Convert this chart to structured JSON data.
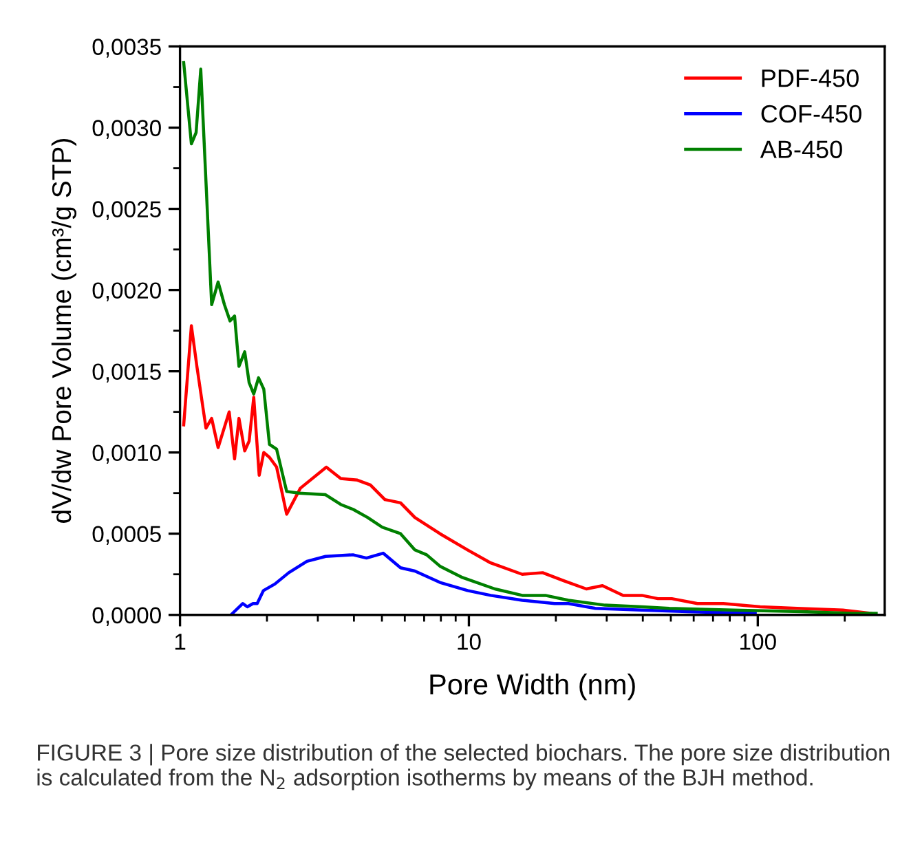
{
  "chart_data": {
    "type": "line",
    "xlabel": "Pore Width (nm)",
    "ylabel": "dV/dw Pore Volume (cm³/g STP)",
    "log": "x",
    "xlim": [
      1,
      275
    ],
    "xticks": [
      1,
      10,
      100
    ],
    "ylim": [
      0,
      0.0035
    ],
    "yticks": [
      {
        "value": 0,
        "label": "0,0000"
      },
      {
        "value": 0.0005,
        "label": "0,0005"
      },
      {
        "value": 0.001,
        "label": "0,0010"
      },
      {
        "value": 0.0015,
        "label": "0,0015"
      },
      {
        "value": 0.002,
        "label": "0,0020"
      },
      {
        "value": 0.0025,
        "label": "0,0025"
      },
      {
        "value": 0.003,
        "label": "0,0030"
      },
      {
        "value": 0.0035,
        "label": "0,0035"
      }
    ],
    "grid": false,
    "legend": "top right",
    "marker": "none",
    "line_style": "solid",
    "series": [
      {
        "name": "PDF-450",
        "color": "#ff0000",
        "x": [
          1.03,
          1.095,
          1.144,
          1.23,
          1.287,
          1.355,
          1.48,
          1.545,
          1.6,
          1.675,
          1.735,
          1.8,
          1.88,
          1.95,
          2.04,
          2.16,
          2.34,
          2.61,
          3.21,
          3.6,
          4.11,
          4.56,
          5.12,
          5.8,
          6.5,
          7.94,
          9.9,
          11.9,
          15.3,
          18.0,
          21.3,
          25.5,
          29.0,
          34.2,
          39.7,
          45.1,
          50.4,
          61.8,
          76.0,
          102,
          137,
          197,
          246
        ],
        "values": [
          0.00117,
          0.00178,
          0.00153,
          0.00115,
          0.00121,
          0.00103,
          0.00125,
          0.00096,
          0.00121,
          0.00101,
          0.00107,
          0.00134,
          0.00086,
          0.001,
          0.00097,
          0.00091,
          0.00062,
          0.00078,
          0.00091,
          0.00084,
          0.00083,
          0.0008,
          0.00071,
          0.00069,
          0.0006,
          0.0005,
          0.0004,
          0.00032,
          0.00025,
          0.00026,
          0.00021,
          0.00016,
          0.00018,
          0.00012,
          0.00012,
          0.0001,
          0.0001,
          7e-05,
          7e-05,
          5e-05,
          4e-05,
          3e-05,
          1e-05
        ]
      },
      {
        "name": "COF-450",
        "color": "#0000ff",
        "x": [
          1.5,
          1.65,
          1.71,
          1.79,
          1.85,
          1.945,
          2.13,
          2.38,
          2.75,
          3.19,
          3.97,
          4.42,
          5.05,
          5.8,
          6.5,
          7.94,
          9.9,
          11.9,
          15.3,
          19.8,
          22.1,
          27.4,
          39.7,
          57,
          98
        ],
        "values": [
          0.0,
          7e-05,
          5e-05,
          7e-05,
          7e-05,
          0.00015,
          0.00019,
          0.00026,
          0.00033,
          0.00036,
          0.00037,
          0.00035,
          0.00038,
          0.00029,
          0.00027,
          0.0002,
          0.00015,
          0.00012,
          9e-05,
          7e-05,
          7e-05,
          4e-05,
          3e-05,
          2e-05,
          1e-05
        ]
      },
      {
        "name": "AB-450",
        "color": "#008000",
        "x": [
          1.03,
          1.095,
          1.137,
          1.18,
          1.287,
          1.355,
          1.425,
          1.49,
          1.545,
          1.6,
          1.675,
          1.735,
          1.8,
          1.87,
          1.95,
          2.04,
          2.16,
          2.34,
          2.58,
          3.19,
          3.6,
          3.97,
          4.46,
          5.01,
          5.8,
          6.5,
          7.14,
          7.94,
          9.5,
          12.3,
          15.3,
          18.4,
          22.1,
          29.6,
          39.7,
          49.4,
          82,
          142,
          213,
          257
        ],
        "values": [
          0.0034,
          0.0029,
          0.00297,
          0.00336,
          0.00191,
          0.00205,
          0.00191,
          0.00181,
          0.00184,
          0.00153,
          0.00162,
          0.00143,
          0.00136,
          0.00146,
          0.00139,
          0.00105,
          0.00102,
          0.00076,
          0.00075,
          0.00074,
          0.00068,
          0.00065,
          0.0006,
          0.00054,
          0.0005,
          0.0004,
          0.00037,
          0.0003,
          0.00023,
          0.00016,
          0.00012,
          0.00012,
          9e-05,
          6e-05,
          5e-05,
          4e-05,
          3e-05,
          2e-05,
          1e-05,
          1e-05
        ]
      }
    ],
    "annotations": [
      "FIGURE 3 | Pore size distribution of the selected biochars. The pore size distribution is calculated from the N$_{2}$ adsorption isotherms by means of the BJH method."
    ]
  }
}
